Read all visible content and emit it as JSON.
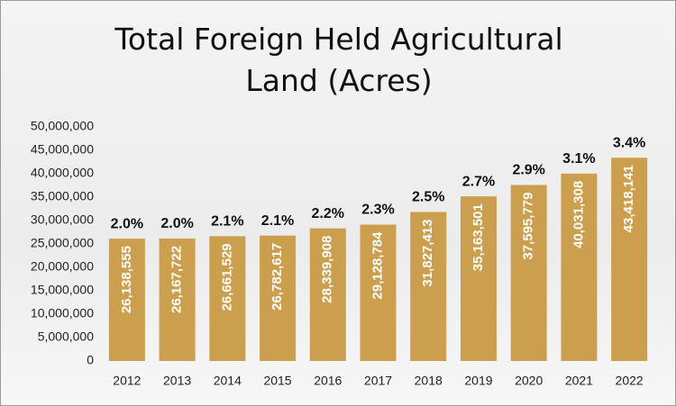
{
  "chart_data": {
    "type": "bar",
    "title": "Total Foreign Held Agricultural Land (Acres)",
    "categories": [
      "2012",
      "2013",
      "2014",
      "2015",
      "2016",
      "2017",
      "2018",
      "2019",
      "2020",
      "2021",
      "2022"
    ],
    "values": [
      26138555,
      26167722,
      26661529,
      26782617,
      28339908,
      29128784,
      31827413,
      35163501,
      37595779,
      40031308,
      43418141
    ],
    "value_labels": [
      "26,138,555",
      "26,167,722",
      "26,661,529",
      "26,782,617",
      "28,339,908",
      "29,128,784",
      "31,827,413",
      "35,163,501",
      "37,595,779",
      "40,031,308",
      "43,418,141"
    ],
    "top_labels": [
      "2.0%",
      "2.0%",
      "2.1%",
      "2.1%",
      "2.2%",
      "2.3%",
      "2.5%",
      "2.7%",
      "2.9%",
      "3.1%",
      "3.4%"
    ],
    "color": "#cc9f4f",
    "ylim": [
      0,
      50000000
    ],
    "yticks": [
      0,
      {
        "value": 5000000,
        "label": "5,000,000"
      },
      {
        "value": 10000000,
        "label": "10,000,000"
      },
      {
        "value": 15000000,
        "label": "15,000,000"
      },
      {
        "value": 20000000,
        "label": "20,000,000"
      },
      {
        "value": 25000000,
        "label": "25,000,000"
      },
      {
        "value": 30000000,
        "label": "30,000,000"
      },
      {
        "value": 35000000,
        "label": "35,000,000"
      },
      {
        "value": 40000000,
        "label": "40,000,000"
      },
      {
        "value": 45000000,
        "label": "45,000,000"
      },
      {
        "value": 50000000,
        "label": "50,000,000"
      }
    ],
    "grid": false
  }
}
